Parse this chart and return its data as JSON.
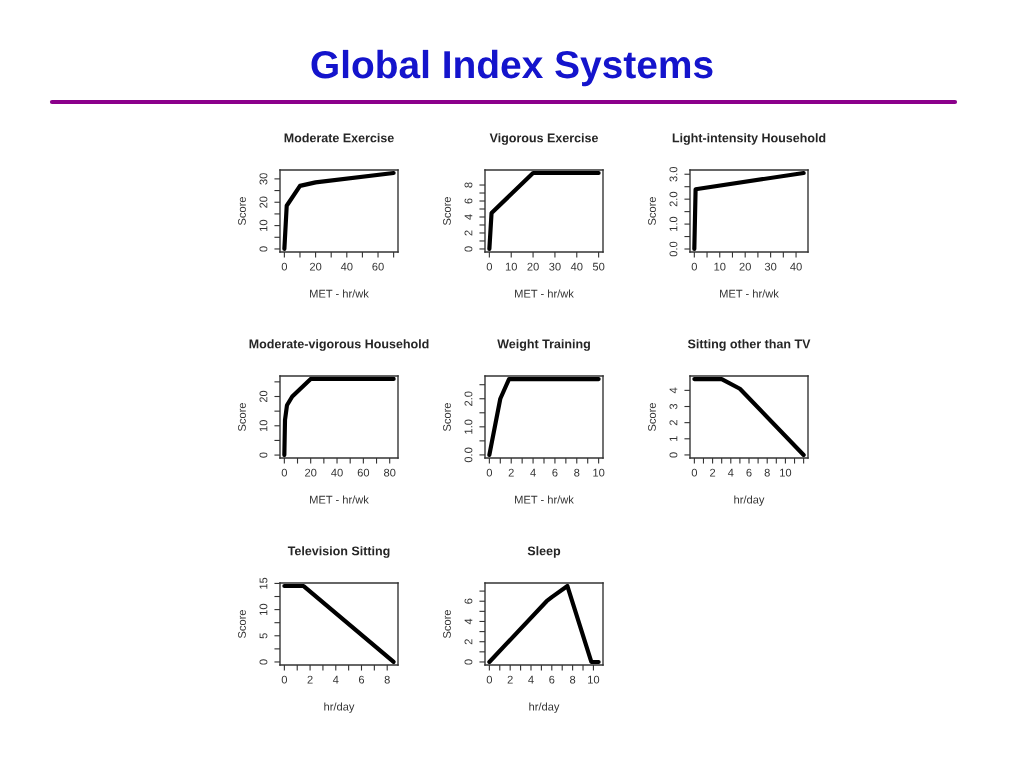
{
  "chart_data": [
    {
      "type": "other",
      "title": "Global Index Systems"
    },
    {
      "type": "line",
      "title": "Moderate Exercise",
      "xlabel": "MET - hr/wk",
      "ylabel": "Score",
      "color": "#000000",
      "x": [
        0,
        1.5,
        10,
        20,
        70
      ],
      "values": [
        0,
        18.5,
        27,
        28.5,
        32.5
      ],
      "xlim": [
        -2.8,
        72.8
      ],
      "ylim": [
        -1.3,
        33.8
      ],
      "xticks": [
        0,
        {
          "value": 10,
          "label": null
        },
        20,
        {
          "value": 30,
          "label": null
        },
        40,
        {
          "value": 50,
          "label": null
        },
        60,
        {
          "value": 70,
          "label": null
        }
      ],
      "yticks": [
        0,
        {
          "value": 5,
          "label": null
        },
        10,
        {
          "value": 15,
          "label": null
        },
        20,
        {
          "value": 25,
          "label": null
        },
        30
      ]
    },
    {
      "type": "line",
      "title": "Vigorous Exercise",
      "xlabel": "MET - hr/wk",
      "ylabel": "Score",
      "color": "#000000",
      "x": [
        0,
        1,
        20,
        50
      ],
      "values": [
        0,
        4.5,
        9.5,
        9.5
      ],
      "xlim": [
        -2,
        52
      ],
      "ylim": [
        -0.38,
        9.88
      ],
      "xticks": [
        0,
        10,
        20,
        30,
        40,
        50
      ],
      "yticks": [
        0,
        {
          "value": 1,
          "label": null
        },
        2,
        {
          "value": 3,
          "label": null
        },
        4,
        {
          "value": 5,
          "label": null
        },
        6,
        {
          "value": 7,
          "label": null
        },
        8
      ]
    },
    {
      "type": "line",
      "title": "Light-intensity Household",
      "xlabel": "MET - hr/wk",
      "ylabel": "Score",
      "color": "#000000",
      "x": [
        0,
        0.5,
        43
      ],
      "values": [
        0,
        2.4,
        3.05
      ],
      "xlim": [
        -1.7,
        44.7
      ],
      "ylim": [
        -0.12,
        3.17
      ],
      "xticks": [
        0,
        {
          "value": 5,
          "label": null
        },
        10,
        {
          "value": 15,
          "label": null
        },
        20,
        {
          "value": 25,
          "label": null
        },
        30,
        {
          "value": 35,
          "label": null
        },
        40
      ],
      "yticks": [
        {
          "value": 0,
          "label": "0.0"
        },
        {
          "value": 0.5,
          "label": null
        },
        {
          "value": 1,
          "label": "1.0"
        },
        {
          "value": 1.5,
          "label": null
        },
        {
          "value": 2,
          "label": "2.0"
        },
        {
          "value": 2.5,
          "label": null
        },
        {
          "value": 3,
          "label": "3.0"
        }
      ]
    },
    {
      "type": "line",
      "title": "Moderate-vigorous Household",
      "xlabel": "MET - hr/wk",
      "ylabel": "Score",
      "color": "#000000",
      "x": [
        0,
        0.5,
        2,
        6,
        20,
        83
      ],
      "values": [
        0,
        12,
        17,
        20,
        26,
        26
      ],
      "xlim": [
        -3.3,
        86.3
      ],
      "ylim": [
        -1,
        27
      ],
      "xticks": [
        0,
        {
          "value": 10,
          "label": null
        },
        20,
        {
          "value": 30,
          "label": null
        },
        40,
        {
          "value": 50,
          "label": null
        },
        60,
        {
          "value": 70,
          "label": null
        },
        80
      ],
      "yticks": [
        0,
        {
          "value": 5,
          "label": null
        },
        10,
        {
          "value": 15,
          "label": null
        },
        20,
        {
          "value": 25,
          "label": null
        }
      ]
    },
    {
      "type": "line",
      "title": "Weight Training",
      "xlabel": "MET - hr/wk",
      "ylabel": "Score",
      "color": "#000000",
      "x": [
        0,
        1,
        1.8,
        10
      ],
      "values": [
        0,
        2,
        2.7,
        2.7
      ],
      "xlim": [
        -0.4,
        10.4
      ],
      "ylim": [
        -0.11,
        2.81
      ],
      "xticks": [
        0,
        {
          "value": 1,
          "label": null
        },
        2,
        {
          "value": 3,
          "label": null
        },
        4,
        {
          "value": 5,
          "label": null
        },
        6,
        {
          "value": 7,
          "label": null
        },
        8,
        {
          "value": 9,
          "label": null
        },
        10
      ],
      "yticks": [
        {
          "value": 0,
          "label": "0.0"
        },
        {
          "value": 0.5,
          "label": null
        },
        {
          "value": 1,
          "label": "1.0"
        },
        {
          "value": 1.5,
          "label": null
        },
        {
          "value": 2,
          "label": "2.0"
        },
        {
          "value": 2.5,
          "label": null
        }
      ]
    },
    {
      "type": "line",
      "title": "Sitting other than TV",
      "xlabel": "hr/day",
      "ylabel": "Score",
      "color": "#000000",
      "x": [
        0,
        3,
        5,
        12
      ],
      "values": [
        4.7,
        4.7,
        4.1,
        0
      ],
      "xlim": [
        -0.48,
        12.48
      ],
      "ylim": [
        -0.19,
        4.89
      ],
      "xticks": [
        0,
        {
          "value": 1,
          "label": null
        },
        2,
        {
          "value": 3,
          "label": null
        },
        4,
        {
          "value": 5,
          "label": null
        },
        6,
        {
          "value": 7,
          "label": null
        },
        8,
        {
          "value": 9,
          "label": null
        },
        10,
        {
          "value": 11,
          "label": null
        },
        {
          "value": 12,
          "label": null
        }
      ],
      "yticks": [
        0,
        1,
        2,
        3,
        4
      ]
    },
    {
      "type": "line",
      "title": "Television Sitting",
      "xlabel": "hr/day",
      "ylabel": "Score",
      "color": "#000000",
      "x": [
        0,
        1.5,
        8.5
      ],
      "values": [
        14.5,
        14.5,
        0
      ],
      "xlim": [
        -0.34,
        8.84
      ],
      "ylim": [
        -0.58,
        15.08
      ],
      "xticks": [
        0,
        {
          "value": 1,
          "label": null
        },
        2,
        {
          "value": 3,
          "label": null
        },
        4,
        {
          "value": 5,
          "label": null
        },
        6,
        {
          "value": 7,
          "label": null
        },
        8
      ],
      "yticks": [
        0,
        {
          "value": 2.5,
          "label": null
        },
        5,
        {
          "value": 7.5,
          "label": null
        },
        10,
        {
          "value": 12.5,
          "label": null
        },
        15
      ]
    },
    {
      "type": "line",
      "title": "Sleep",
      "xlabel": "hr/day",
      "ylabel": "Score",
      "color": "#000000",
      "x": [
        0,
        5.5,
        6,
        7.5,
        9.8,
        10.5
      ],
      "values": [
        0,
        6,
        6.4,
        7.5,
        0,
        0
      ],
      "xlim": [
        -0.42,
        10.92
      ],
      "ylim": [
        -0.3,
        7.8
      ],
      "xticks": [
        0,
        {
          "value": 1,
          "label": null
        },
        2,
        {
          "value": 3,
          "label": null
        },
        4,
        {
          "value": 5,
          "label": null
        },
        6,
        {
          "value": 7,
          "label": null
        },
        8,
        {
          "value": 9,
          "label": null
        },
        10
      ],
      "yticks": [
        0,
        {
          "value": 1,
          "label": null
        },
        2,
        {
          "value": 3,
          "label": null
        },
        4,
        {
          "value": 5,
          "label": null
        },
        6,
        {
          "value": 7,
          "label": null
        }
      ]
    }
  ]
}
